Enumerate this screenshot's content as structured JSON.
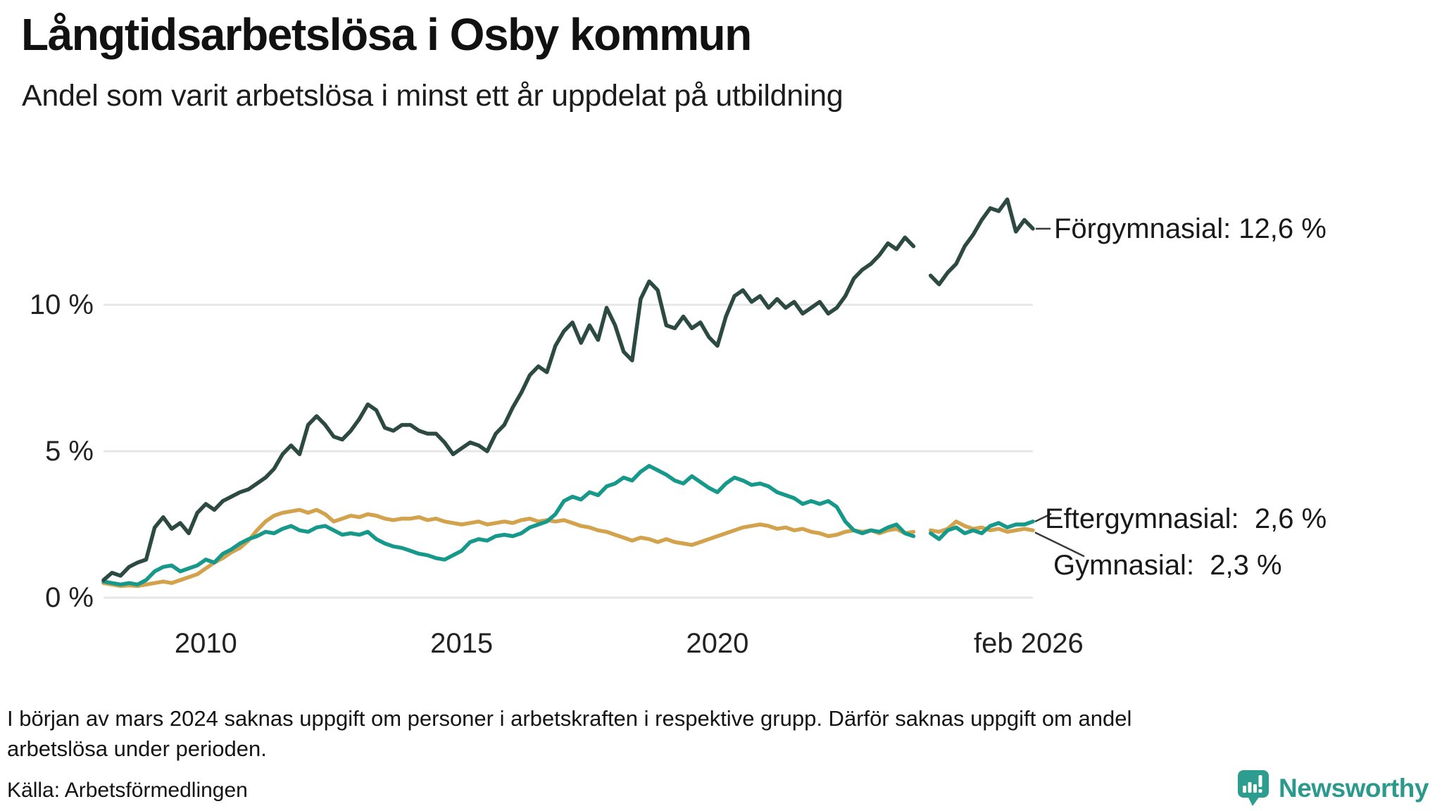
{
  "title": "Långtidsarbetslösa i Osby kommun",
  "subtitle": "Andel som varit arbetslösa i minst ett år uppdelat på utbildning",
  "footnote": "I början av mars 2024 saknas uppgift om personer i arbetskraften i respektive grupp. Därför saknas uppgift om andel arbetslösa under perioden.",
  "source": "Källa: Arbetsförmedlingen",
  "logo": {
    "text": "Newsworthy",
    "color": "#2b998b"
  },
  "colors": {
    "forgymnasial": "#2c4a41",
    "eftergymnasial": "#16998a",
    "gymnasial": "#d2a24c",
    "gridline": "#e7e7e7",
    "connector": "#3a3a3a",
    "background": "#ffffff"
  },
  "chart_data": {
    "type": "line",
    "title": "Långtidsarbetslösa i Osby kommun",
    "subtitle": "Andel som varit arbetslösa i minst ett år uppdelat på utbildning",
    "xlabel": "",
    "ylabel": "",
    "ylim": [
      0,
      14
    ],
    "x_start_year": 2008.0,
    "x_step_years": 0.16667,
    "x_end_year": 2026.167,
    "gap_period": "dec 2023 – feb 2024",
    "grid": "horizontal",
    "legend_position": "right-end-labels",
    "y_axis": {
      "ticks": [
        {
          "label": "10 %",
          "value": 10
        },
        {
          "label": "5 %",
          "value": 5
        },
        {
          "label": "0 %",
          "value": 0
        }
      ]
    },
    "x_axis": {
      "ticks": [
        {
          "label": "2010",
          "year": 2010
        },
        {
          "label": "2015",
          "year": 2015
        },
        {
          "label": "2020",
          "year": 2020
        },
        {
          "label": "feb 2026",
          "year": 2026.083
        }
      ]
    },
    "series": [
      {
        "name": "Förgymnasial",
        "end_label": "Förgymnasial: 12,6 %",
        "end_value_text": "12,6 %",
        "color": "#2c4a41",
        "values": [
          0.6,
          0.85,
          0.75,
          1.05,
          1.2,
          1.3,
          2.4,
          2.75,
          2.35,
          2.55,
          2.2,
          2.9,
          3.2,
          3.0,
          3.3,
          3.45,
          3.6,
          3.7,
          3.9,
          4.1,
          4.4,
          4.9,
          5.2,
          4.9,
          5.9,
          6.2,
          5.9,
          5.5,
          5.4,
          5.7,
          6.1,
          6.6,
          6.4,
          5.8,
          5.7,
          5.9,
          5.9,
          5.7,
          5.6,
          5.6,
          5.3,
          4.9,
          5.1,
          5.3,
          5.2,
          5.0,
          5.6,
          5.9,
          6.5,
          7.0,
          7.6,
          7.9,
          7.7,
          8.6,
          9.1,
          9.4,
          8.7,
          9.3,
          8.8,
          9.9,
          9.3,
          8.4,
          8.1,
          10.2,
          10.8,
          10.5,
          9.3,
          9.2,
          9.6,
          9.2,
          9.4,
          8.9,
          8.6,
          9.6,
          10.3,
          10.5,
          10.1,
          10.3,
          9.9,
          10.2,
          9.9,
          10.1,
          9.7,
          9.9,
          10.1,
          9.7,
          9.9,
          10.3,
          10.9,
          11.2,
          11.4,
          11.7,
          12.1,
          11.9,
          12.3,
          12.0,
          null,
          11.0,
          10.7,
          11.1,
          11.4,
          12.0,
          12.4,
          12.9,
          13.3,
          13.2,
          13.6,
          12.5,
          12.9,
          12.6
        ]
      },
      {
        "name": "Eftergymnasial",
        "end_label": "Eftergymnasial:  2,6 %",
        "end_value_text": "2,6 %",
        "color": "#16998a",
        "values": [
          0.55,
          0.5,
          0.45,
          0.5,
          0.45,
          0.6,
          0.9,
          1.05,
          1.1,
          0.9,
          1.0,
          1.1,
          1.3,
          1.2,
          1.5,
          1.65,
          1.85,
          2.0,
          2.1,
          2.25,
          2.2,
          2.35,
          2.45,
          2.3,
          2.25,
          2.4,
          2.45,
          2.3,
          2.15,
          2.2,
          2.15,
          2.25,
          2.0,
          1.85,
          1.75,
          1.7,
          1.6,
          1.5,
          1.45,
          1.35,
          1.3,
          1.45,
          1.6,
          1.9,
          2.0,
          1.95,
          2.1,
          2.15,
          2.1,
          2.2,
          2.4,
          2.5,
          2.6,
          2.85,
          3.3,
          3.45,
          3.35,
          3.6,
          3.5,
          3.8,
          3.9,
          4.1,
          4.0,
          4.3,
          4.5,
          4.35,
          4.2,
          4.0,
          3.9,
          4.15,
          3.95,
          3.75,
          3.6,
          3.9,
          4.1,
          4.0,
          3.85,
          3.9,
          3.8,
          3.6,
          3.5,
          3.4,
          3.2,
          3.3,
          3.2,
          3.3,
          3.1,
          2.6,
          2.3,
          2.2,
          2.3,
          2.25,
          2.4,
          2.5,
          2.2,
          2.1,
          null,
          2.2,
          2.0,
          2.3,
          2.4,
          2.2,
          2.3,
          2.2,
          2.45,
          2.55,
          2.4,
          2.5,
          2.5,
          2.6
        ]
      },
      {
        "name": "Gymnasial",
        "end_label": "Gymnasial:  2,3 %",
        "end_value_text": "2,3 %",
        "color": "#d2a24c",
        "values": [
          0.5,
          0.45,
          0.4,
          0.42,
          0.4,
          0.45,
          0.5,
          0.55,
          0.5,
          0.6,
          0.7,
          0.8,
          1.0,
          1.2,
          1.35,
          1.55,
          1.7,
          1.95,
          2.3,
          2.6,
          2.8,
          2.9,
          2.95,
          3.0,
          2.9,
          3.0,
          2.85,
          2.6,
          2.7,
          2.8,
          2.75,
          2.85,
          2.8,
          2.7,
          2.65,
          2.7,
          2.7,
          2.75,
          2.65,
          2.7,
          2.6,
          2.55,
          2.5,
          2.55,
          2.6,
          2.5,
          2.55,
          2.6,
          2.55,
          2.65,
          2.7,
          2.6,
          2.65,
          2.6,
          2.65,
          2.55,
          2.45,
          2.4,
          2.3,
          2.25,
          2.15,
          2.05,
          1.95,
          2.05,
          2.0,
          1.9,
          2.0,
          1.9,
          1.85,
          1.8,
          1.9,
          2.0,
          2.1,
          2.2,
          2.3,
          2.4,
          2.45,
          2.5,
          2.45,
          2.35,
          2.4,
          2.3,
          2.35,
          2.25,
          2.2,
          2.1,
          2.15,
          2.25,
          2.3,
          2.25,
          2.3,
          2.2,
          2.3,
          2.35,
          2.2,
          2.25,
          null,
          2.3,
          2.25,
          2.35,
          2.6,
          2.45,
          2.35,
          2.4,
          2.3,
          2.35,
          2.25,
          2.3,
          2.35,
          2.3
        ]
      }
    ]
  }
}
